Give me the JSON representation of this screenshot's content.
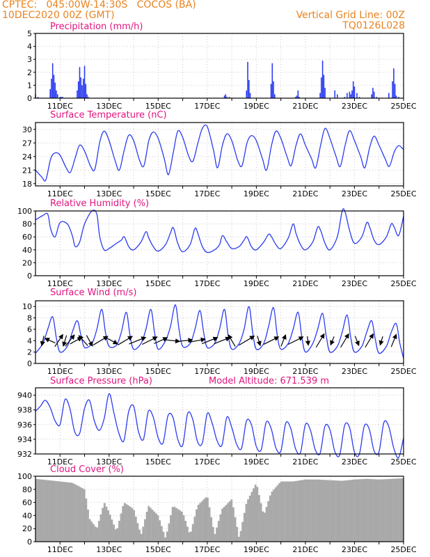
{
  "header": {
    "line1": "CPTEC:   045:00W-14:30S   COCOS (BA)",
    "line2": "10DEC2020 00Z (GMT)",
    "grid_note": "Vertical Grid Line: 00Z",
    "code": "TQ0126L028"
  },
  "colors": {
    "header": "#e8831f",
    "title": "#e0147f",
    "line": "#2b3bf0",
    "cloud": "#a9a9a9",
    "wind_arrow": "#000000"
  },
  "chart_data": [
    {
      "type": "bar",
      "title": "Precipitation (mm/h)",
      "ylim": [
        0,
        5
      ],
      "yticks": [
        "0",
        "1",
        "2",
        "3",
        "4",
        "5"
      ],
      "xticks": [
        "11DEC",
        "13DEC",
        "15DEC",
        "17DEC",
        "19DEC",
        "21DEC",
        "23DEC",
        "25DEC"
      ],
      "grid": true,
      "x_unit": "days since 10DEC2020 00Z",
      "x": [
        0.0,
        0.1,
        0.6,
        0.65,
        0.7,
        0.75,
        0.8,
        0.85,
        0.9,
        1.0,
        1.05,
        1.1,
        1.7,
        1.75,
        1.8,
        1.85,
        1.9,
        1.95,
        2.0,
        2.05,
        2.1,
        2.15,
        7.7,
        7.75,
        7.8,
        7.9,
        8.6,
        8.65,
        8.7,
        8.75,
        9.6,
        9.65,
        9.7,
        9.75,
        10.6,
        10.65,
        10.7,
        10.75,
        11.6,
        11.65,
        11.7,
        11.75,
        11.8,
        12.2,
        12.3,
        12.6,
        12.7,
        12.8,
        12.85,
        12.9,
        12.95,
        13.0,
        13.1,
        13.2,
        13.7,
        13.75,
        13.8,
        13.9,
        14.4,
        14.55,
        14.6,
        14.65,
        14.7,
        14.8
      ],
      "values": [
        0.3,
        0.1,
        0.7,
        1.5,
        2.7,
        1.8,
        1.2,
        0.6,
        0.3,
        0.1,
        0.1,
        0.1,
        0.6,
        1.3,
        2.4,
        1.6,
        1.0,
        1.5,
        2.5,
        1.1,
        0.3,
        0.1,
        0.2,
        0.3,
        0.1,
        0.1,
        0.6,
        2.8,
        1.4,
        0.4,
        1.1,
        2.7,
        1.3,
        0.3,
        0.1,
        0.2,
        0.6,
        0.1,
        0.4,
        1.6,
        2.9,
        1.8,
        0.8,
        0.6,
        0.3,
        0.1,
        0.4,
        0.5,
        0.3,
        0.6,
        1.3,
        0.9,
        0.4,
        0.1,
        0.3,
        0.8,
        0.5,
        0.1,
        0.4,
        1.3,
        2.3,
        1.1,
        0.2,
        0.1
      ]
    },
    {
      "type": "line",
      "title": "Surface Temperature (nC)",
      "ylim": [
        17.5,
        31.5
      ],
      "yticks": [
        "18",
        "21",
        "24",
        "27",
        "30"
      ],
      "xticks": [
        "11DEC",
        "13DEC",
        "15DEC",
        "17DEC",
        "19DEC",
        "21DEC",
        "23DEC",
        "25DEC"
      ],
      "grid": true,
      "x_unit": "days since 10DEC2020 00Z",
      "x": [
        0.0,
        0.25,
        0.42,
        0.62,
        0.8,
        1.0,
        1.25,
        1.42,
        1.62,
        1.8,
        2.0,
        2.25,
        2.42,
        2.62,
        2.8,
        3.0,
        3.25,
        3.42,
        3.62,
        3.8,
        4.0,
        4.25,
        4.42,
        4.62,
        4.8,
        5.0,
        5.25,
        5.42,
        5.62,
        5.8,
        6.0,
        6.25,
        6.42,
        6.62,
        6.8,
        7.0,
        7.25,
        7.42,
        7.62,
        7.8,
        8.0,
        8.25,
        8.42,
        8.62,
        8.8,
        9.0,
        9.25,
        9.42,
        9.62,
        9.8,
        10.0,
        10.25,
        10.42,
        10.62,
        10.8,
        11.0,
        11.25,
        11.42,
        11.62,
        11.8,
        12.0,
        12.25,
        12.42,
        12.62,
        12.8,
        13.0,
        13.25,
        13.42,
        13.62,
        13.8,
        14.0,
        14.25,
        14.42,
        14.62,
        14.8,
        15.0
      ],
      "values": [
        21.0,
        19.5,
        18.8,
        23.5,
        24.8,
        24.3,
        21.5,
        20.5,
        23.7,
        26.5,
        25.2,
        21.8,
        21.2,
        27.2,
        29.6,
        27.5,
        23.0,
        21.0,
        25.5,
        28.7,
        27.5,
        23.0,
        22.0,
        27.5,
        29.4,
        28.0,
        23.5,
        20.0,
        25.0,
        29.6,
        28.2,
        24.0,
        23.0,
        27.0,
        30.2,
        30.6,
        25.5,
        21.5,
        26.5,
        29.0,
        27.5,
        23.0,
        22.0,
        27.0,
        28.6,
        27.5,
        23.5,
        21.0,
        26.5,
        29.6,
        28.0,
        24.0,
        22.0,
        26.5,
        29.0,
        26.5,
        23.5,
        21.5,
        26.5,
        30.2,
        28.0,
        24.0,
        21.8,
        26.5,
        29.7,
        27.5,
        24.0,
        21.5,
        26.0,
        28.5,
        26.5,
        23.5,
        21.8,
        25.0,
        26.4,
        25.5
      ]
    },
    {
      "type": "line",
      "title": "Relative Humidity (%)",
      "ylim": [
        0,
        100
      ],
      "yticks": [
        "0",
        "20",
        "40",
        "60",
        "80",
        "100"
      ],
      "xticks": [
        "11DEC",
        "13DEC",
        "15DEC",
        "17DEC",
        "19DEC",
        "21DEC",
        "23DEC",
        "25DEC"
      ],
      "grid": true,
      "x_unit": "days since 10DEC2020 00Z",
      "x": [
        0.0,
        0.3,
        0.5,
        0.62,
        0.8,
        1.0,
        1.3,
        1.5,
        1.62,
        1.8,
        2.0,
        2.3,
        2.5,
        2.62,
        2.8,
        3.0,
        3.3,
        3.5,
        3.62,
        3.8,
        4.0,
        4.3,
        4.5,
        4.62,
        4.8,
        5.0,
        5.3,
        5.5,
        5.62,
        5.8,
        6.0,
        6.3,
        6.5,
        6.62,
        6.8,
        7.0,
        7.3,
        7.5,
        7.62,
        7.8,
        8.0,
        8.3,
        8.5,
        8.62,
        8.8,
        9.0,
        9.3,
        9.5,
        9.62,
        9.8,
        10.0,
        10.3,
        10.5,
        10.62,
        10.8,
        11.0,
        11.3,
        11.5,
        11.62,
        11.8,
        12.0,
        12.3,
        12.5,
        12.62,
        12.8,
        13.0,
        13.3,
        13.5,
        13.62,
        13.8,
        14.0,
        14.3,
        14.5,
        14.62,
        14.8,
        15.0
      ],
      "values": [
        86,
        93,
        95,
        72,
        60,
        82,
        80,
        62,
        45,
        52,
        80,
        100,
        95,
        60,
        40,
        42,
        50,
        55,
        60,
        45,
        40,
        52,
        68,
        58,
        45,
        38,
        48,
        66,
        74,
        50,
        37,
        48,
        73,
        65,
        45,
        36,
        40,
        48,
        62,
        52,
        42,
        45,
        55,
        60,
        45,
        40,
        52,
        64,
        60,
        48,
        42,
        58,
        80,
        65,
        48,
        40,
        52,
        75,
        70,
        50,
        40,
        60,
        100,
        98,
        70,
        50,
        60,
        82,
        75,
        55,
        48,
        60,
        80,
        75,
        62,
        92
      ]
    },
    {
      "type": "line",
      "title": "Surface Wind (m/s)",
      "ylim": [
        0,
        11
      ],
      "yticks": [
        "0",
        "2",
        "4",
        "6",
        "8",
        "10"
      ],
      "xticks": [
        "11DEC",
        "13DEC",
        "15DEC",
        "17DEC",
        "19DEC",
        "21DEC",
        "23DEC",
        "25DEC"
      ],
      "grid": true,
      "x_unit": "days since 10DEC2020 00Z",
      "x": [
        0.0,
        0.3,
        0.5,
        0.7,
        0.85,
        1.0,
        1.3,
        1.5,
        1.7,
        1.85,
        2.0,
        2.3,
        2.5,
        2.7,
        2.85,
        3.0,
        3.3,
        3.5,
        3.7,
        3.85,
        4.0,
        4.3,
        4.5,
        4.7,
        4.85,
        5.0,
        5.3,
        5.5,
        5.7,
        5.85,
        6.0,
        6.3,
        6.5,
        6.7,
        6.85,
        7.0,
        7.3,
        7.5,
        7.7,
        7.85,
        8.0,
        8.3,
        8.5,
        8.7,
        8.85,
        9.0,
        9.3,
        9.5,
        9.7,
        9.85,
        10.0,
        10.3,
        10.5,
        10.7,
        10.85,
        11.0,
        11.3,
        11.5,
        11.7,
        11.85,
        12.0,
        12.3,
        12.5,
        12.7,
        12.85,
        13.0,
        13.3,
        13.5,
        13.7,
        13.85,
        14.0,
        14.3,
        14.5,
        14.7,
        14.85,
        15.0
      ],
      "values": [
        1.8,
        3.5,
        6.0,
        8.2,
        4.5,
        2.0,
        3.0,
        5.5,
        7.5,
        5.0,
        2.8,
        3.5,
        6.0,
        9.5,
        5.5,
        3.0,
        3.2,
        5.5,
        9.0,
        5.0,
        2.5,
        3.5,
        6.0,
        9.5,
        5.5,
        2.5,
        4.0,
        6.5,
        10.3,
        6.0,
        3.0,
        3.5,
        6.0,
        9.3,
        5.5,
        2.8,
        3.5,
        6.0,
        9.5,
        5.0,
        2.5,
        3.5,
        6.0,
        10.0,
        5.5,
        2.5,
        3.5,
        6.5,
        9.8,
        5.0,
        2.5,
        3.5,
        6.0,
        9.0,
        4.8,
        2.0,
        3.5,
        6.0,
        8.8,
        4.8,
        2.0,
        3.0,
        5.5,
        8.5,
        4.5,
        2.0,
        3.0,
        5.5,
        7.5,
        4.2,
        1.8,
        3.0,
        5.5,
        7.0,
        3.5,
        0.9
      ],
      "arrows": {
        "x": [
          0.3,
          0.6,
          0.95,
          1.2,
          1.4,
          1.65,
          1.95,
          2.2,
          2.65,
          3.1,
          3.65,
          4.15,
          4.65,
          5.1,
          5.6,
          6.1,
          6.6,
          7.1,
          7.6,
          8.0,
          8.6,
          9.1,
          9.6,
          10.1,
          10.6,
          11.1,
          11.6,
          12.1,
          12.6,
          13.1,
          13.6,
          14.1,
          14.6
        ],
        "u": [
          -0.2,
          -0.9,
          0.6,
          -0.3,
          0.8,
          0.9,
          -0.8,
          0.5,
          1.0,
          0.9,
          1.0,
          1.0,
          1.0,
          0.9,
          0.9,
          1.0,
          1.0,
          1.0,
          1.0,
          -0.6,
          1.0,
          0.3,
          1.0,
          0.4,
          1.0,
          0.1,
          0.6,
          -0.4,
          0.6,
          0.4,
          0.6,
          -0.3,
          0.4
        ],
        "v": [
          -0.9,
          0.4,
          0.9,
          -1.0,
          1.0,
          0.5,
          0.9,
          -0.9,
          0.6,
          -0.5,
          0.6,
          0.4,
          0.5,
          0.4,
          -0.1,
          0.1,
          0.2,
          0.4,
          0.4,
          1.0,
          0.6,
          -1.0,
          0.5,
          1.0,
          0.5,
          -1.0,
          1.0,
          -1.0,
          1.0,
          -1.0,
          1.0,
          -1.0,
          1.0
        ],
        "mag": [
          0.9,
          1.0,
          1.3,
          1.0,
          1.3,
          1.2,
          1.2,
          1.1,
          1.5,
          1.2,
          1.5,
          1.6,
          1.5,
          1.3,
          1.2,
          1.3,
          1.4,
          1.5,
          1.5,
          1.2,
          1.6,
          0.9,
          1.5,
          1.1,
          1.5,
          0.8,
          1.4,
          0.8,
          1.4,
          0.9,
          1.4,
          0.8,
          1.2
        ]
      }
    },
    {
      "type": "line",
      "title": "Surface Pressure (hPa)",
      "annotation": "Model Altitude: 671.539  m",
      "ylim": [
        932,
        941
      ],
      "yticks": [
        "932",
        "934",
        "936",
        "938",
        "940"
      ],
      "xticks": [
        "11DEC",
        "13DEC",
        "15DEC",
        "17DEC",
        "19DEC",
        "21DEC",
        "23DEC",
        "25DEC"
      ],
      "grid": true,
      "x_unit": "days since 10DEC2020 00Z",
      "x": [
        0.0,
        0.2,
        0.4,
        0.6,
        0.8,
        1.0,
        1.2,
        1.4,
        1.6,
        1.8,
        2.0,
        2.2,
        2.4,
        2.6,
        2.8,
        3.0,
        3.2,
        3.4,
        3.6,
        3.8,
        4.0,
        4.2,
        4.4,
        4.6,
        4.8,
        5.0,
        5.2,
        5.4,
        5.6,
        5.8,
        6.0,
        6.2,
        6.4,
        6.6,
        6.8,
        7.0,
        7.2,
        7.4,
        7.6,
        7.8,
        8.0,
        8.2,
        8.4,
        8.6,
        8.8,
        9.0,
        9.2,
        9.4,
        9.6,
        9.8,
        10.0,
        10.2,
        10.4,
        10.6,
        10.8,
        11.0,
        11.2,
        11.4,
        11.6,
        11.8,
        12.0,
        12.2,
        12.4,
        12.6,
        12.8,
        13.0,
        13.2,
        13.4,
        13.6,
        13.8,
        14.0,
        14.2,
        14.4,
        14.6,
        14.8,
        15.0
      ],
      "values": [
        937.8,
        938.5,
        939.3,
        938.3,
        936.5,
        936.0,
        939.4,
        938.2,
        935.0,
        934.8,
        938.2,
        939.3,
        936.5,
        935.2,
        936.8,
        940.2,
        937.5,
        934.8,
        933.8,
        937.8,
        938.5,
        935.0,
        934.0,
        937.8,
        937.0,
        934.2,
        933.5,
        937.2,
        937.0,
        934.0,
        933.2,
        937.5,
        936.8,
        933.7,
        933.5,
        937.5,
        936.2,
        933.8,
        933.2,
        937.0,
        935.6,
        933.3,
        932.8,
        936.5,
        936.0,
        933.0,
        932.6,
        936.3,
        935.5,
        932.8,
        932.4,
        936.2,
        935.5,
        932.7,
        932.2,
        936.0,
        935.3,
        932.6,
        932.1,
        935.8,
        935.3,
        932.3,
        931.9,
        935.9,
        935.6,
        932.2,
        932.0,
        935.8,
        935.4,
        932.4,
        932.3,
        936.3,
        935.7,
        932.8,
        931.5,
        934.2
      ]
    },
    {
      "type": "area",
      "title": "Cloud Cover (%)",
      "ylim": [
        0,
        100
      ],
      "yticks": [
        "0",
        "20",
        "40",
        "60",
        "80",
        "100"
      ],
      "xticks": [
        "11DEC",
        "13DEC",
        "15DEC",
        "17DEC",
        "19DEC",
        "21DEC",
        "23DEC",
        "25DEC"
      ],
      "grid": true,
      "x_unit": "days since 10DEC2020 00Z",
      "x": [
        0.0,
        0.5,
        1.0,
        1.5,
        2.0,
        2.2,
        2.5,
        2.8,
        3.0,
        3.3,
        3.6,
        4.0,
        4.3,
        4.6,
        5.0,
        5.3,
        5.6,
        6.0,
        6.3,
        6.6,
        7.0,
        7.3,
        7.6,
        8.0,
        8.3,
        8.6,
        9.0,
        9.3,
        9.6,
        10.0,
        10.5,
        11.0,
        11.5,
        12.0,
        12.5,
        13.0,
        13.5,
        14.0,
        14.5,
        15.0
      ],
      "values": [
        96,
        94,
        92,
        90,
        80,
        35,
        20,
        60,
        45,
        15,
        60,
        50,
        10,
        55,
        40,
        5,
        55,
        45,
        10,
        55,
        70,
        10,
        50,
        65,
        5,
        60,
        90,
        40,
        75,
        92,
        92,
        95,
        95,
        94,
        93,
        95,
        96,
        95,
        96,
        97
      ]
    }
  ]
}
